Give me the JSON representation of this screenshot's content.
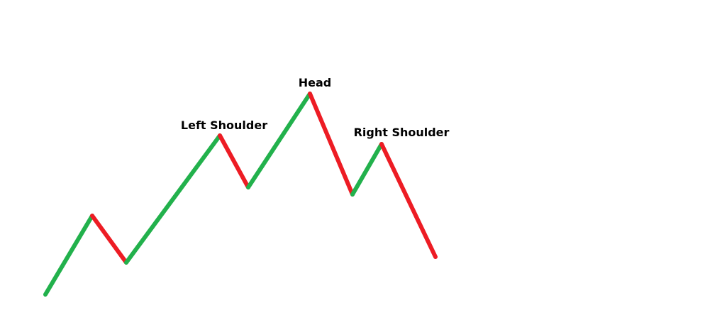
{
  "labels": {
    "left_shoulder": "Left Shoulder",
    "head": "Head",
    "right_shoulder": "Right Shoulder"
  },
  "colors": {
    "up": "#22b14c",
    "down": "#ed1c24",
    "text": "#000000",
    "background": "#ffffff"
  },
  "segments": [
    {
      "direction": "up",
      "color": "#22b14c"
    },
    {
      "direction": "down",
      "color": "#ed1c24"
    },
    {
      "direction": "up",
      "color": "#22b14c"
    },
    {
      "direction": "down",
      "color": "#ed1c24"
    },
    {
      "direction": "up",
      "color": "#22b14c"
    },
    {
      "direction": "down",
      "color": "#ed1c24"
    },
    {
      "direction": "up",
      "color": "#22b14c"
    },
    {
      "direction": "down",
      "color": "#ed1c24"
    }
  ]
}
